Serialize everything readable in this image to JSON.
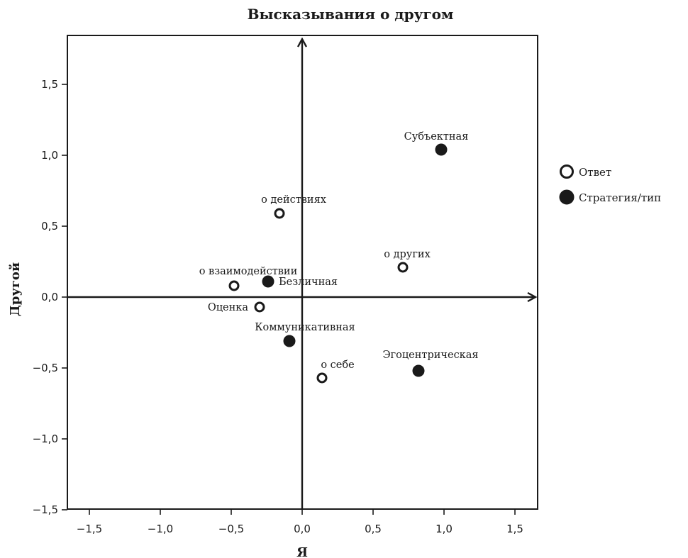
{
  "chart_data": {
    "type": "scatter",
    "title": "Высказывания о другом",
    "xlabel": "Я",
    "ylabel": "Другой",
    "xlim": [
      -1.65,
      1.65
    ],
    "ylim": [
      -1.5,
      1.83
    ],
    "xticks": [
      -1.5,
      -1.0,
      -0.5,
      0.0,
      0.5,
      1.0,
      1.5
    ],
    "yticks": [
      -1.5,
      -1.0,
      -0.5,
      0.0,
      0.5,
      1.0,
      1.5
    ],
    "tick_labels_x": [
      "−1,5",
      "−1,0",
      "−0,5",
      "0,0",
      "0,5",
      "1,0",
      "1,5"
    ],
    "tick_labels_y": [
      "−1,5",
      "−1,0",
      "−0,5",
      "0,0",
      "0,5",
      "1,0",
      "1,5"
    ],
    "grid": false,
    "legend_position": "right",
    "colors": {
      "ink": "#1a1a1a",
      "background": "#ffffff"
    },
    "series": [
      {
        "name": "Ответ",
        "marker": "open-circle",
        "points": [
          {
            "label": "о действиях",
            "x": -0.16,
            "y": 0.59
          },
          {
            "label": "о взаимодействии",
            "x": -0.48,
            "y": 0.08
          },
          {
            "label": "Оценка",
            "x": -0.3,
            "y": -0.07
          },
          {
            "label": "о других",
            "x": 0.71,
            "y": 0.21
          },
          {
            "label": "о себе",
            "x": 0.14,
            "y": -0.57
          }
        ]
      },
      {
        "name": "Стратегия/тип",
        "marker": "filled-circle",
        "points": [
          {
            "label": "Субъектная",
            "x": 0.98,
            "y": 1.04
          },
          {
            "label": "Безличная",
            "x": -0.24,
            "y": 0.11
          },
          {
            "label": "Коммуникативная",
            "x": -0.09,
            "y": -0.31
          },
          {
            "label": "Эгоцентрическая",
            "x": 0.82,
            "y": -0.52
          }
        ]
      }
    ]
  }
}
